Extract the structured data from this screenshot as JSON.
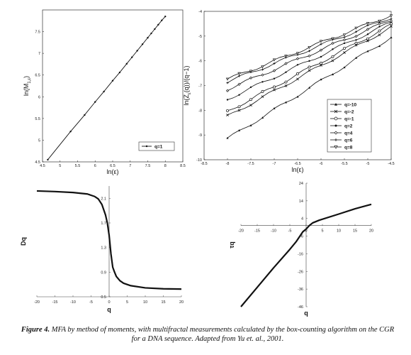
{
  "caption": {
    "label": "Figure 4.",
    "text": "MFA by method of moments, with multifractal measurements calculated by the box-counting algorithm on the CGR for a DNA sequence.  Adapted from Yu et. al., 2001."
  },
  "chart_data": [
    {
      "type": "line",
      "xlabel": "ln(ε)",
      "ylabel": "ln(M1,ε)",
      "xlim": [
        4.5,
        8.5
      ],
      "ylim": [
        4.5,
        8.0
      ],
      "xticks": [
        "4.5",
        "5",
        "5.5",
        "6",
        "6.5",
        "7",
        "7.5",
        "8",
        "8.5"
      ],
      "yticks": [
        "4.5",
        "5",
        "5.5",
        "6",
        "6.5",
        "7",
        "7.5"
      ],
      "legend_position": "bottom-right",
      "series": [
        {
          "name": "q=1",
          "marker": "dot",
          "x": [
            4.65,
            5.3,
            5.7,
            6.0,
            6.25,
            6.5,
            6.7,
            6.9,
            7.05,
            7.2,
            7.35,
            7.5,
            7.6,
            7.7,
            7.8,
            7.9,
            8.0
          ],
          "y": [
            4.55,
            5.2,
            5.58,
            5.88,
            6.12,
            6.37,
            6.56,
            6.76,
            6.91,
            7.06,
            7.21,
            7.36,
            7.46,
            7.56,
            7.66,
            7.76,
            7.85
          ]
        }
      ]
    },
    {
      "type": "line",
      "xlabel": "ln(ε)",
      "ylabel": "ln(Zε(q))/(q−1)",
      "xlim": [
        -8.5,
        -4.5
      ],
      "ylim": [
        -10,
        -4
      ],
      "xticks": [
        "-8.5",
        "-8",
        "-7.5",
        "-7",
        "-6.5",
        "-6",
        "-5.5",
        "-5",
        "-4.5"
      ],
      "yticks": [
        "-4",
        "-5",
        "-6",
        "-7",
        "-8",
        "-9",
        "-10"
      ],
      "legend_position": "bottom-right",
      "series": [
        {
          "name": "q=-10",
          "marker": "triangle-up",
          "y0": -9.15,
          "y1": -5.05
        },
        {
          "name": "q=-2",
          "marker": "x",
          "y0": -8.25,
          "y1": -4.65
        },
        {
          "name": "q=-1",
          "marker": "circle",
          "y0": -8.05,
          "y1": -4.55
        },
        {
          "name": "q=2",
          "marker": "dot",
          "y0": -7.55,
          "y1": -4.45
        },
        {
          "name": "q=4",
          "marker": "diamond",
          "y0": -7.15,
          "y1": -4.35
        },
        {
          "name": "q=6",
          "marker": "plus",
          "y0": -6.85,
          "y1": -4.25
        },
        {
          "name": "q=8",
          "marker": "triangle-down",
          "y0": -6.75,
          "y1": -4.15
        }
      ],
      "x_range": [
        -8,
        -4.5
      ]
    },
    {
      "type": "line",
      "xlabel": "q",
      "ylabel": "Dq",
      "xlim": [
        -20,
        20
      ],
      "ylim": [
        0.5,
        2.3
      ],
      "xticks": [
        "-20",
        "-15",
        "-10",
        "-5",
        "0",
        "5",
        "10",
        "15",
        "20"
      ],
      "yticks": [
        "2.1",
        "1.7",
        "1.3",
        "0.9",
        "0.5"
      ],
      "series": [
        {
          "name": "Dq",
          "x": [
            -20,
            -15,
            -10,
            -6,
            -4,
            -3,
            -2,
            -1,
            -0.5,
            0,
            0.5,
            1,
            1.5,
            2,
            3,
            4,
            6,
            10,
            15,
            20
          ],
          "y": [
            2.22,
            2.21,
            2.195,
            2.17,
            2.13,
            2.09,
            2.0,
            1.83,
            1.7,
            1.5,
            1.2,
            0.98,
            0.9,
            0.83,
            0.76,
            0.72,
            0.68,
            0.645,
            0.63,
            0.625
          ]
        }
      ]
    },
    {
      "type": "line",
      "xlabel": "q",
      "ylabel": "τq",
      "xlim": [
        -20,
        20
      ],
      "ylim": [
        -46,
        24
      ],
      "xticks": [
        "-20",
        "-15",
        "-10",
        "-5",
        "0",
        "5",
        "10",
        "15",
        "20"
      ],
      "yticks": [
        "24",
        "14",
        "4",
        "-6",
        "-16",
        "-26",
        "-36",
        "-46"
      ],
      "series": [
        {
          "name": "τq",
          "x": [
            -20,
            -15,
            -10,
            -5,
            -3,
            -1,
            0,
            1,
            2,
            4,
            10,
            15,
            20
          ],
          "y": [
            -46,
            -35,
            -24,
            -13.5,
            -9,
            -3.5,
            -2,
            0,
            1.5,
            3,
            6.5,
            9.5,
            12
          ]
        }
      ]
    }
  ]
}
